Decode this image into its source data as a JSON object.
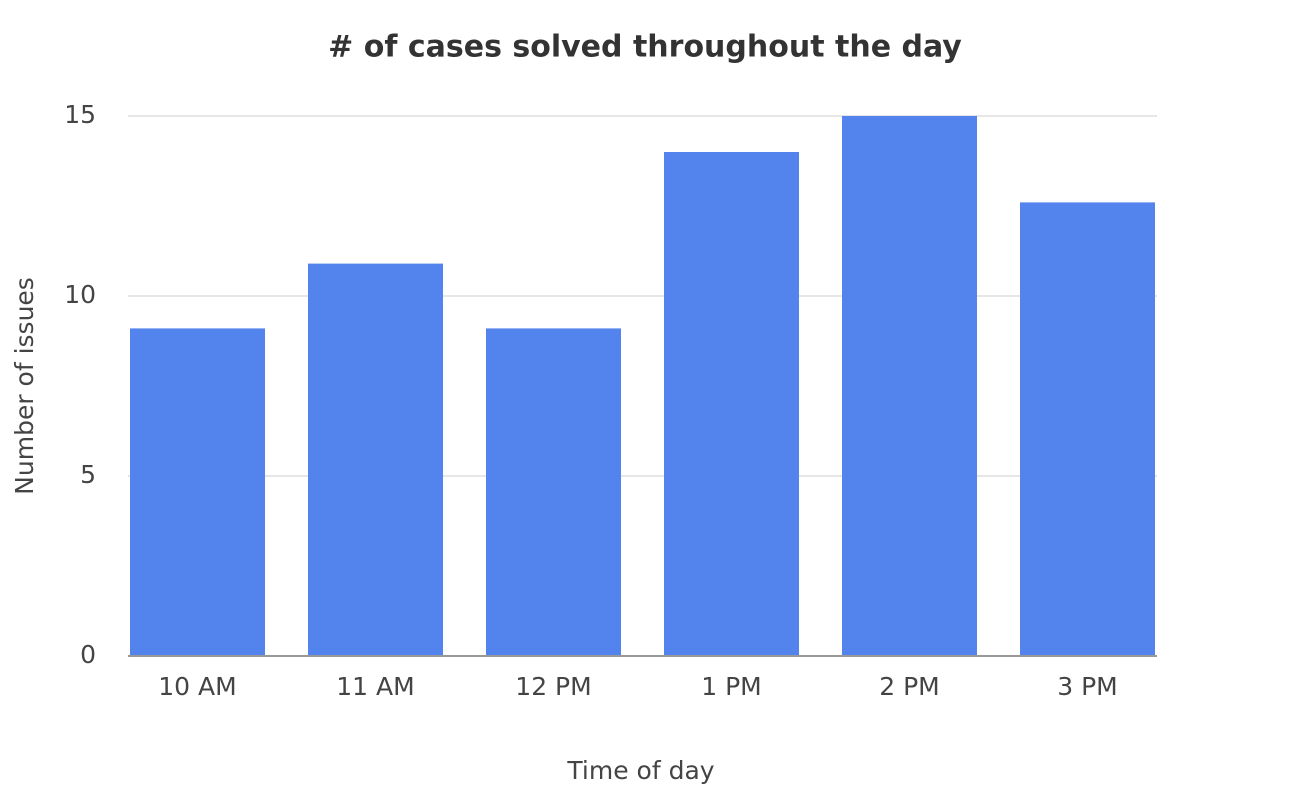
{
  "chart_data": {
    "type": "bar",
    "title": "# of cases solved throughout the day",
    "x_label": "Time of day",
    "y_label": "Number of issues",
    "categories": [
      "10 AM",
      "11 AM",
      "12 PM",
      "1 PM",
      "2 PM",
      "3 PM"
    ],
    "values": [
      9.1,
      10.9,
      9.1,
      14,
      15,
      12.6
    ],
    "color": "#5383ec",
    "ylim": [
      0,
      15
    ],
    "yticks": [
      0,
      5,
      10,
      15
    ],
    "grid": true
  }
}
